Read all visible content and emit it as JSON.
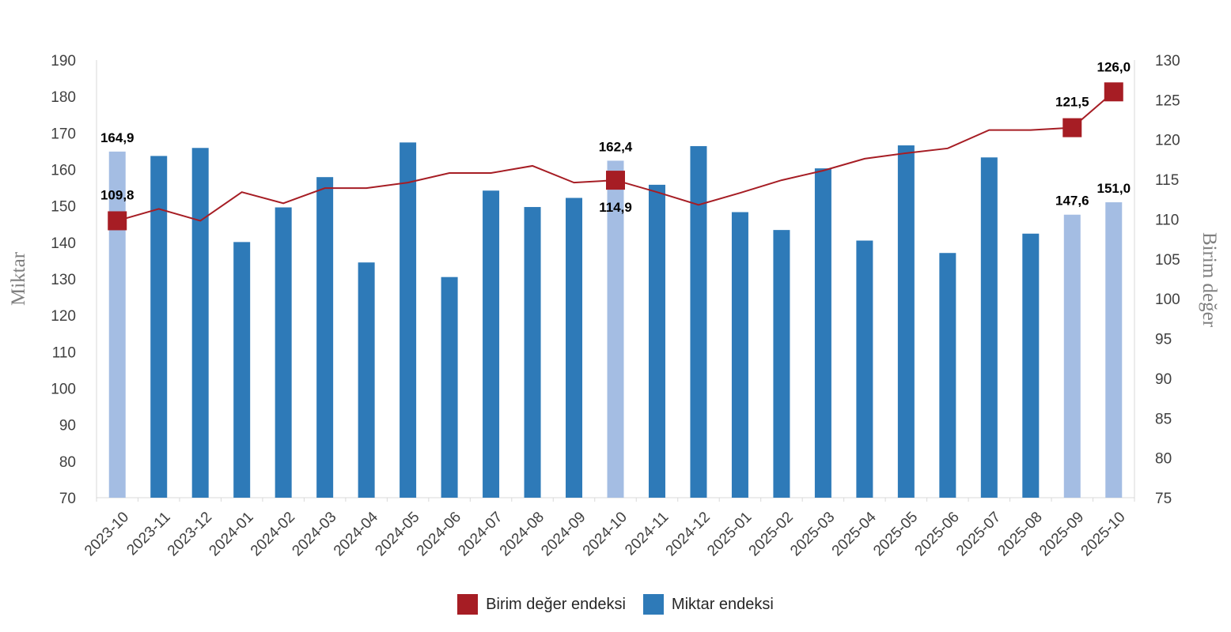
{
  "chart_data": {
    "type": "bar",
    "categories": [
      "2023-10",
      "2023-11",
      "2023-12",
      "2024-01",
      "2024-02",
      "2024-03",
      "2024-04",
      "2024-05",
      "2024-06",
      "2024-07",
      "2024-08",
      "2024-09",
      "2024-10",
      "2024-11",
      "2024-12",
      "2025-01",
      "2025-02",
      "2025-03",
      "2025-04",
      "2025-05",
      "2025-06",
      "2025-07",
      "2025-08",
      "2025-09",
      "2025-10"
    ],
    "series": [
      {
        "name": "Miktar endeksi",
        "type": "bar",
        "axis": "left",
        "color": "#2e7ab8",
        "highlight_color": "#a4bde3",
        "highlighted_categories": [
          "2023-10",
          "2024-10",
          "2025-09",
          "2025-10"
        ],
        "values": [
          164.9,
          163.7,
          165.9,
          140.1,
          149.6,
          157.9,
          134.5,
          167.4,
          130.5,
          154.2,
          149.7,
          152.2,
          162.4,
          155.8,
          166.4,
          148.3,
          143.4,
          160.3,
          140.5,
          166.6,
          137.1,
          163.3,
          142.4,
          147.6,
          151.0
        ]
      },
      {
        "name": "Birim değer endeksi",
        "type": "line",
        "axis": "right",
        "color": "#a61d24",
        "marker_categories": [
          "2023-10",
          "2024-10",
          "2025-09",
          "2025-10"
        ],
        "values": [
          109.8,
          111.3,
          109.8,
          113.4,
          112.0,
          113.9,
          113.9,
          114.6,
          115.8,
          115.8,
          116.7,
          114.6,
          114.9,
          113.4,
          111.8,
          113.3,
          114.9,
          116.1,
          117.6,
          118.3,
          118.9,
          121.2,
          121.2,
          121.5,
          126.0
        ]
      }
    ],
    "data_labels": {
      "bars": [
        {
          "category": "2023-10",
          "text": "164,9"
        },
        {
          "category": "2024-10",
          "text": "162,4"
        },
        {
          "category": "2025-09",
          "text": "147,6"
        },
        {
          "category": "2025-10",
          "text": "151,0"
        }
      ],
      "line": [
        {
          "category": "2023-10",
          "text": "109,8"
        },
        {
          "category": "2024-10",
          "text": "114,9"
        },
        {
          "category": "2025-09",
          "text": "121,5"
        },
        {
          "category": "2025-10",
          "text": "126,0"
        }
      ]
    },
    "ylabel": "Miktar",
    "y2label": "Birim değer",
    "ylim": [
      70,
      190
    ],
    "yticks": [
      70,
      80,
      90,
      100,
      110,
      120,
      130,
      140,
      150,
      160,
      170,
      180,
      190
    ],
    "y2lim": [
      75,
      130
    ],
    "y2ticks": [
      75,
      80,
      85,
      90,
      95,
      100,
      105,
      110,
      115,
      120,
      125,
      130
    ],
    "grid": false,
    "legend_position": "bottom",
    "legend": [
      {
        "name": "Birim değer endeksi",
        "color": "#a61d24"
      },
      {
        "name": "Miktar endeksi",
        "color": "#2e7ab8"
      }
    ]
  }
}
